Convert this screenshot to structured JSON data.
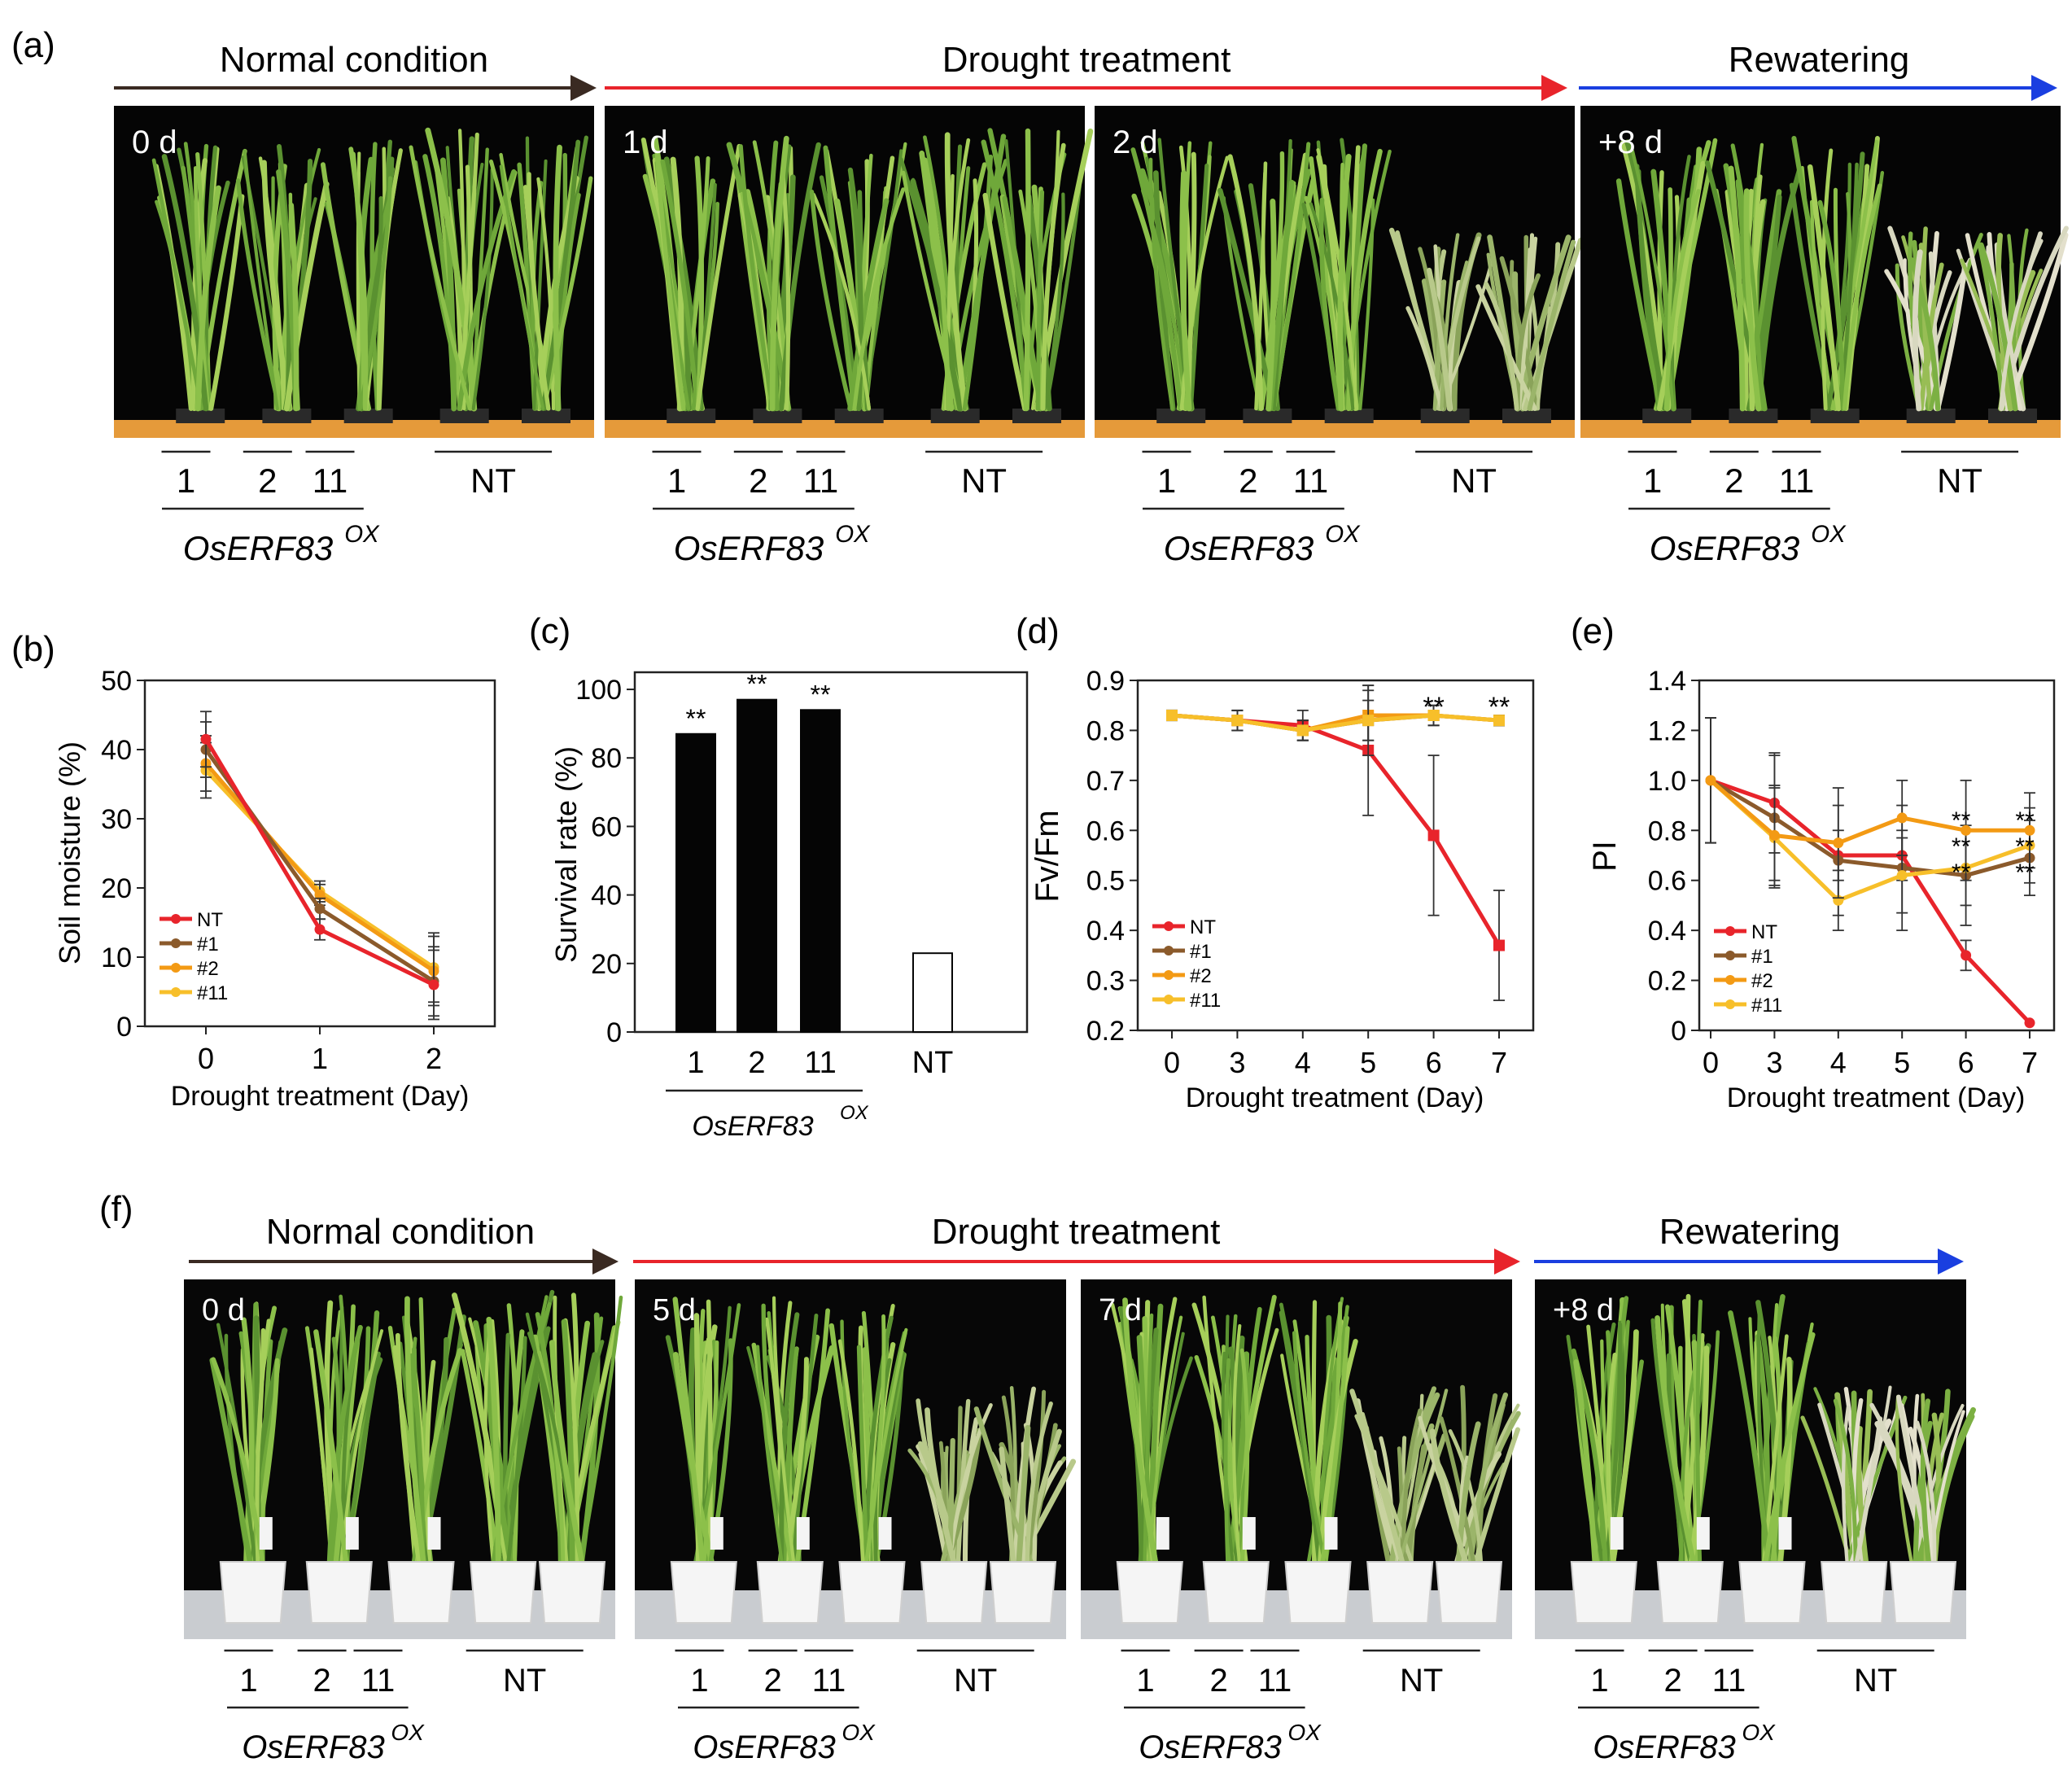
{
  "figure": {
    "panel_a": {
      "letter": "(a)",
      "phases": [
        {
          "label": "Normal condition",
          "color": "#3a2a22"
        },
        {
          "label": "Drought treatment",
          "color": "#e8242b"
        },
        {
          "label": "Rewatering",
          "color": "#1a3fe0"
        }
      ],
      "photos": [
        {
          "day": "0 d",
          "state": "healthy"
        },
        {
          "day": "1 d",
          "state": "healthy"
        },
        {
          "day": "2 d",
          "state": "wilted"
        },
        {
          "day": "+8 d",
          "state": "recovered"
        }
      ],
      "line_labels": [
        "1",
        "2",
        "11"
      ],
      "control_label": "NT",
      "gene_label": "OsERF83",
      "gene_superscript": "OX"
    },
    "panel_f": {
      "letter": "(f)",
      "phases": [
        {
          "label": "Normal condition",
          "color": "#3a2a22"
        },
        {
          "label": "Drought treatment",
          "color": "#e8242b"
        },
        {
          "label": "Rewatering",
          "color": "#1a3fe0"
        }
      ],
      "photos": [
        {
          "day": "0 d",
          "state": "healthy"
        },
        {
          "day": "5 d",
          "state": "wilted"
        },
        {
          "day": "7 d",
          "state": "wilted"
        },
        {
          "day": "+8 d",
          "state": "recovered"
        }
      ],
      "line_labels": [
        "1",
        "2",
        "11"
      ],
      "control_label": "NT",
      "gene_label": "OsERF83",
      "gene_superscript": "OX"
    },
    "series_colors": {
      "NT": "#e8242b",
      "#1": "#8b5a2b",
      "#2": "#f39a14",
      "#11": "#f7bf2a"
    }
  },
  "chart_data": [
    {
      "panel": "(b)",
      "type": "line",
      "x": [
        0,
        1,
        2
      ],
      "xlabel": "Drought treatment (Day)",
      "ylabel": "Soil moisture (%)",
      "ylim": [
        0,
        50
      ],
      "yticks": [
        0,
        10,
        20,
        30,
        40,
        50
      ],
      "legend": "bottom-left",
      "series": [
        {
          "name": "NT",
          "values": [
            41.5,
            14,
            6
          ]
        },
        {
          "name": "#1",
          "values": [
            40,
            17,
            6.5
          ]
        },
        {
          "name": "#2",
          "values": [
            38,
            19,
            8
          ]
        },
        {
          "name": "#11",
          "values": [
            37,
            19.5,
            8.5
          ]
        }
      ],
      "errors": [
        4,
        1.5,
        5
      ]
    },
    {
      "panel": "(c)",
      "type": "bar",
      "categories": [
        "1",
        "2",
        "11",
        "NT"
      ],
      "values": [
        87,
        97,
        94,
        23
      ],
      "ylabel": "Survival rate (%)",
      "ylim": [
        0,
        105
      ],
      "yticks": [
        0,
        20,
        40,
        60,
        80,
        100
      ],
      "significance": [
        "**",
        "**",
        "**",
        ""
      ],
      "group_label": "OsERF83",
      "group_superscript": "OX"
    },
    {
      "panel": "(d)",
      "type": "line",
      "x": [
        "0",
        "3",
        "4",
        "5",
        "6",
        "7"
      ],
      "xlabel": "Drought treatment (Day)",
      "ylabel": "Fv/Fm",
      "ylim": [
        0.2,
        0.9
      ],
      "yticks": [
        0.2,
        0.3,
        0.4,
        0.5,
        0.6,
        0.7,
        0.8,
        0.9
      ],
      "legend": "bottom-left",
      "series": [
        {
          "name": "NT",
          "values": [
            0.83,
            0.82,
            0.81,
            0.76,
            0.59,
            0.37
          ],
          "errors": [
            0.01,
            0.02,
            0.03,
            0.13,
            0.16,
            0.11
          ]
        },
        {
          "name": "#1",
          "values": [
            0.83,
            0.82,
            0.8,
            0.82,
            0.83,
            0.82
          ],
          "errors": [
            0.01,
            0.02,
            0.02,
            0.07,
            0.02,
            0.01
          ]
        },
        {
          "name": "#2",
          "values": [
            0.83,
            0.82,
            0.8,
            0.83,
            0.83,
            0.82
          ],
          "errors": [
            0.01,
            0.02,
            0.02,
            0.05,
            0.02,
            0.01
          ]
        },
        {
          "name": "#11",
          "values": [
            0.83,
            0.82,
            0.8,
            0.82,
            0.83,
            0.82
          ],
          "errors": [
            0.01,
            0.02,
            0.02,
            0.04,
            0.02,
            0.01
          ]
        }
      ],
      "significance": [
        "",
        "",
        "",
        "",
        "**",
        "**"
      ]
    },
    {
      "panel": "(e)",
      "type": "line",
      "x": [
        "0",
        "3",
        "4",
        "5",
        "6",
        "7"
      ],
      "xlabel": "Drought treatment (Day)",
      "ylabel": "PI",
      "ylim": [
        0,
        1.4
      ],
      "yticks": [
        0,
        0.2,
        0.4,
        0.6,
        0.8,
        1.0,
        1.2,
        1.4
      ],
      "legend": "bottom-left",
      "series": [
        {
          "name": "NT",
          "values": [
            1.0,
            0.91,
            0.7,
            0.7,
            0.3,
            0.03
          ],
          "errors": [
            0.25,
            0.2,
            0.1,
            0.1,
            0.06,
            0.0
          ]
        },
        {
          "name": "#1",
          "values": [
            1.0,
            0.85,
            0.68,
            0.65,
            0.62,
            0.69
          ],
          "errors": [
            0.25,
            0.25,
            0.22,
            0.25,
            0.2,
            0.15
          ]
        },
        {
          "name": "#2",
          "values": [
            1.0,
            0.78,
            0.75,
            0.85,
            0.8,
            0.8
          ],
          "errors": [
            0.25,
            0.2,
            0.22,
            0.15,
            0.2,
            0.15
          ]
        },
        {
          "name": "#11",
          "values": [
            1.0,
            0.77,
            0.52,
            0.62,
            0.65,
            0.74
          ],
          "errors": [
            0.25,
            0.2,
            0.12,
            0.15,
            0.15,
            0.15
          ]
        }
      ],
      "significance_rows": [
        "**",
        "**",
        "**"
      ]
    }
  ]
}
